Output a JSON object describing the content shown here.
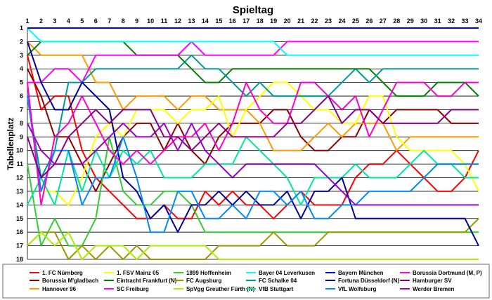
{
  "chart_data": {
    "type": "line",
    "title": "Spieltag",
    "xlabel": "",
    "ylabel": "Tabellenplatz",
    "xlim": [
      1,
      34
    ],
    "ylim": [
      18,
      1
    ],
    "y_reversed": true,
    "grid": true,
    "legend_position": "bottom",
    "x": [
      1,
      2,
      3,
      4,
      5,
      6,
      7,
      8,
      9,
      10,
      11,
      12,
      13,
      14,
      15,
      16,
      17,
      18,
      19,
      20,
      21,
      22,
      23,
      24,
      25,
      26,
      27,
      28,
      29,
      30,
      31,
      32,
      33,
      34
    ],
    "y_ticks": [
      1,
      2,
      3,
      4,
      5,
      6,
      7,
      8,
      9,
      10,
      11,
      12,
      13,
      14,
      15,
      16,
      17,
      18
    ],
    "series": [
      {
        "name": "1. FC Nürnberg",
        "color": "#ff0000",
        "values": [
          3,
          7,
          6,
          6,
          10,
          12,
          13,
          14,
          15,
          15,
          14,
          15,
          15,
          13,
          14,
          13,
          14,
          14,
          15,
          14,
          13,
          14,
          14,
          14,
          12,
          11,
          11,
          10,
          11,
          12,
          13,
          13,
          12,
          10
        ]
      },
      {
        "name": "Borussia M'gladbach",
        "color": "#8b0000",
        "values": [
          4,
          6,
          9,
          9,
          11,
          13,
          11,
          9,
          8,
          8,
          10,
          8,
          10,
          11,
          9,
          8,
          8,
          8,
          7,
          7,
          9,
          10,
          10,
          9,
          9,
          7,
          8,
          7,
          7,
          7,
          7,
          8,
          8,
          8
        ]
      },
      {
        "name": "Hannover 96",
        "color": "#ff9900",
        "values": [
          2,
          3,
          3,
          3,
          3,
          5,
          5,
          7,
          6,
          6,
          6,
          7,
          6,
          6,
          7,
          7,
          7,
          8,
          10,
          10,
          10,
          9,
          8,
          9,
          8,
          8,
          8,
          10,
          9,
          9,
          9,
          9,
          9,
          9
        ]
      },
      {
        "name": "1. FSV Mainz 05",
        "color": "#ffff00",
        "values": [
          6,
          13,
          13,
          14,
          12,
          9,
          8,
          9,
          7,
          7,
          7,
          8,
          7,
          7,
          6,
          9,
          7,
          6,
          5,
          5,
          6,
          7,
          7,
          8,
          8,
          6,
          6,
          9,
          10,
          10,
          10,
          10,
          11,
          13
        ]
      },
      {
        "name": "Eintracht Frankfurt (N)",
        "color": "#008000",
        "values": [
          3,
          2,
          2,
          2,
          2,
          2,
          2,
          2,
          3,
          3,
          3,
          3,
          4,
          5,
          5,
          4,
          4,
          4,
          4,
          4,
          4,
          4,
          4,
          4,
          4,
          4,
          5,
          6,
          6,
          6,
          5,
          5,
          5,
          6
        ]
      },
      {
        "name": "SC Freiburg",
        "color": "#ff00ff",
        "values": [
          5,
          5,
          4,
          4,
          5,
          3,
          3,
          3,
          3,
          3,
          3,
          3,
          2,
          3,
          3,
          3,
          3,
          3,
          3,
          2,
          2,
          2,
          2,
          2,
          2,
          2,
          2,
          2,
          2,
          2,
          2,
          2,
          2,
          2
        ]
      },
      {
        "name": "1899 Hoffenheim",
        "color": "#33cc33",
        "values": [
          11,
          17,
          15,
          17,
          17,
          15,
          9,
          13,
          14,
          14,
          13,
          13,
          14,
          16,
          16,
          16,
          16,
          16,
          16,
          16,
          16,
          16,
          16,
          16,
          16,
          16,
          16,
          16,
          16,
          16,
          16,
          16,
          16,
          16
        ]
      },
      {
        "name": "FC Augsburg",
        "color": "#999900",
        "values": [
          17,
          16,
          16,
          18,
          17,
          18,
          17,
          18,
          17,
          18,
          18,
          18,
          18,
          18,
          17,
          17,
          17,
          17,
          16,
          17,
          17,
          17,
          16,
          16,
          16,
          16,
          16,
          16,
          16,
          16,
          16,
          16,
          16,
          15
        ]
      },
      {
        "name": "SpVgg Greuther Fürth (N)",
        "color": "#aaee00",
        "values": [
          17,
          16,
          17,
          16,
          18,
          17,
          17,
          17,
          18,
          17,
          17,
          17,
          17,
          17,
          18,
          18,
          18,
          18,
          18,
          18,
          18,
          18,
          18,
          18,
          18,
          18,
          18,
          18,
          18,
          18,
          18,
          18,
          18,
          18
        ]
      },
      {
        "name": "Bayer 04 Leverkusen",
        "color": "#00ffff",
        "values": [
          1,
          2,
          2,
          2,
          2,
          2,
          2,
          2,
          2,
          2,
          2,
          2,
          2,
          2,
          2,
          2,
          2,
          2,
          2,
          3,
          3,
          3,
          3,
          3,
          3,
          3,
          3,
          3,
          3,
          3,
          3,
          3,
          3,
          3
        ]
      },
      {
        "name": "FC Schalke 04",
        "color": "#009999",
        "values": [
          6,
          12,
          10,
          5,
          5,
          4,
          4,
          4,
          4,
          4,
          4,
          4,
          3,
          4,
          4,
          5,
          6,
          5,
          6,
          6,
          6,
          6,
          6,
          5,
          4,
          5,
          4,
          4,
          4,
          4,
          4,
          4,
          4,
          4
        ]
      },
      {
        "name": "VfB Stuttgart",
        "color": "#00e6a0",
        "values": [
          14,
          12,
          14,
          10,
          13,
          10,
          12,
          10,
          11,
          10,
          12,
          12,
          12,
          11,
          11,
          11,
          9,
          10,
          11,
          12,
          14,
          12,
          12,
          12,
          11,
          12,
          12,
          12,
          11,
          10,
          11,
          11,
          12,
          12
        ]
      },
      {
        "name": "Bayern München",
        "color": "#0000ff",
        "values": [
          1,
          1,
          1,
          1,
          1,
          1,
          1,
          1,
          1,
          1,
          1,
          1,
          1,
          1,
          1,
          1,
          1,
          1,
          1,
          1,
          1,
          1,
          1,
          1,
          1,
          1,
          1,
          1,
          1,
          1,
          1,
          1,
          1,
          1
        ]
      },
      {
        "name": "Fortuna Düsseldorf (N)",
        "color": "#000099",
        "values": [
          2,
          5,
          7,
          7,
          5,
          6,
          7,
          12,
          13,
          15,
          14,
          16,
          14,
          14,
          13,
          14,
          13,
          14,
          14,
          13,
          15,
          13,
          13,
          12,
          15,
          15,
          15,
          15,
          15,
          15,
          15,
          15,
          15,
          17
        ]
      },
      {
        "name": "VfL Wolfsburg",
        "color": "#0088ff",
        "values": [
          6,
          13,
          10,
          10,
          14,
          12,
          12,
          9,
          12,
          16,
          16,
          13,
          13,
          15,
          15,
          14,
          15,
          13,
          13,
          14,
          13,
          15,
          15,
          14,
          14,
          13,
          13,
          13,
          13,
          12,
          11,
          11,
          11,
          11
        ]
      },
      {
        "name": "Borussia Dortmund (M, P)",
        "color": "#ff00cc",
        "values": [
          5,
          14,
          9,
          8,
          6,
          8,
          10,
          11,
          10,
          11,
          10,
          9,
          9,
          8,
          10,
          8,
          5,
          7,
          8,
          8,
          5,
          5,
          6,
          7,
          6,
          9,
          7,
          5,
          5,
          5,
          6,
          6,
          5,
          5
        ]
      },
      {
        "name": "Hamburger SV",
        "color": "#880088",
        "values": [
          9,
          12,
          11,
          9,
          8,
          7,
          8,
          7,
          7,
          7,
          9,
          9,
          10,
          9,
          8,
          9,
          9,
          9,
          9,
          8,
          8,
          7,
          6,
          8,
          7,
          7,
          8,
          8,
          8,
          8,
          8,
          7,
          7,
          7
        ]
      },
      {
        "name": "Werder Bremen",
        "color": "#9900cc",
        "values": [
          8,
          10,
          11,
          11,
          11,
          10,
          9,
          8,
          9,
          9,
          8,
          10,
          8,
          10,
          11,
          12,
          11,
          11,
          11,
          11,
          11,
          11,
          12,
          13,
          14,
          14,
          14,
          14,
          14,
          14,
          14,
          14,
          14,
          14
        ]
      }
    ]
  }
}
